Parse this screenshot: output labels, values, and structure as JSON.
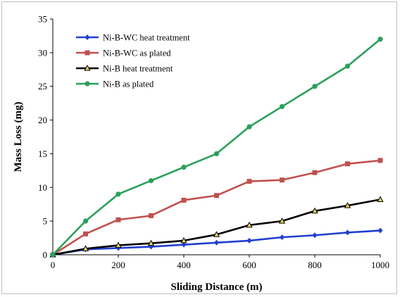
{
  "chart_data": {
    "type": "line",
    "xlabel": "Sliding Distance (m)",
    "ylabel": "Mass Loss (mg)",
    "xlim": [
      0,
      1000
    ],
    "ylim": [
      0,
      35
    ],
    "xticks": [
      0,
      200,
      400,
      600,
      800,
      1000
    ],
    "yticks": [
      0,
      5,
      10,
      15,
      20,
      25,
      30,
      35
    ],
    "grid": false,
    "legend_position": "top-left",
    "x": [
      0,
      100,
      200,
      300,
      400,
      500,
      600,
      700,
      800,
      900,
      1000
    ],
    "series": [
      {
        "name": "Ni-B-WC heat treatment",
        "color": "#1f3fd1",
        "marker": "diamond",
        "values": [
          0,
          0.8,
          1.0,
          1.2,
          1.5,
          1.8,
          2.1,
          2.6,
          2.9,
          3.3,
          3.6
        ]
      },
      {
        "name": "Ni-B-WC as plated",
        "color": "#c0504d",
        "marker": "square",
        "values": [
          0,
          3.1,
          5.2,
          5.8,
          8.1,
          8.8,
          10.9,
          11.1,
          12.2,
          13.5,
          14.0
        ]
      },
      {
        "name": "Ni-B heat treatment",
        "color": "#000000",
        "marker": "triangle",
        "values": [
          0,
          0.9,
          1.4,
          1.7,
          2.1,
          3.0,
          4.4,
          5.0,
          6.5,
          7.3,
          8.2
        ]
      },
      {
        "name": "Ni-B as plated",
        "color": "#2aa05a",
        "marker": "circle",
        "values": [
          0,
          5.0,
          9.0,
          11.0,
          13.0,
          15.0,
          19.0,
          22.0,
          25.0,
          28.0,
          32.0
        ]
      }
    ]
  }
}
